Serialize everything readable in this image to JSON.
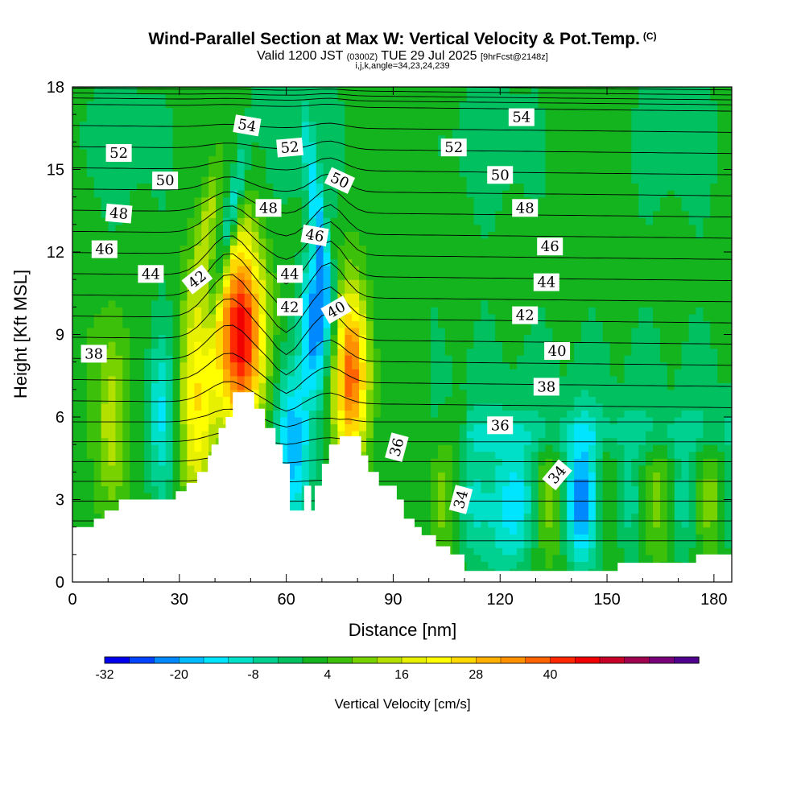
{
  "title": {
    "main": "Wind-Parallel Section at Max W: Vertical Velocity & Pot.Temp.",
    "units_tag": "(C)",
    "valid_prefix": "Valid 1200 JST",
    "valid_utc": "(0300Z)",
    "valid_date": "TUE 29 Jul 2025",
    "forecast_info": "[9hrFcst@2148z]",
    "indices": "i,j,k,angle=34,23,24,239"
  },
  "colorbar": {
    "label": "Vertical Velocity [cm/s]",
    "tick_labels": [
      "-32",
      "-20",
      "-8",
      "4",
      "16",
      "28",
      "40"
    ],
    "colors": [
      "#0000ee",
      "#0044ff",
      "#0088ff",
      "#00bbff",
      "#00e5ff",
      "#00e0c8",
      "#00d090",
      "#00c060",
      "#14b41e",
      "#3cc00a",
      "#78d200",
      "#b4e000",
      "#e6f000",
      "#ffff00",
      "#ffd800",
      "#ffb000",
      "#ff9000",
      "#ff6400",
      "#ff2800",
      "#f00000",
      "#c80028",
      "#a00050",
      "#780078",
      "#50008c"
    ]
  },
  "chart_data": {
    "type": "heatmap",
    "xlabel": "Distance [nm]",
    "ylabel": "Height [Kft MSL]",
    "xlim": [
      0,
      185
    ],
    "ylim": [
      0,
      18
    ],
    "x_ticks": [
      0,
      30,
      60,
      90,
      120,
      150,
      180
    ],
    "y_ticks": [
      0,
      3,
      6,
      9,
      12,
      15,
      18
    ],
    "field": "vertical velocity (cm/s), shaded",
    "contours": "potential temperature (C)",
    "terrain": [
      [
        0,
        2.0
      ],
      [
        6,
        2.0
      ],
      [
        6,
        2.3
      ],
      [
        9,
        2.3
      ],
      [
        9,
        2.6
      ],
      [
        13,
        2.6
      ],
      [
        13,
        3.0
      ],
      [
        29,
        3.0
      ],
      [
        29,
        3.3
      ],
      [
        32,
        3.3
      ],
      [
        32,
        3.6
      ],
      [
        35,
        3.6
      ],
      [
        35,
        4.0
      ],
      [
        38,
        4.0
      ],
      [
        38,
        4.6
      ],
      [
        39,
        4.6
      ],
      [
        39,
        5.0
      ],
      [
        41,
        5.0
      ],
      [
        41,
        5.6
      ],
      [
        43,
        5.6
      ],
      [
        43,
        6.0
      ],
      [
        45,
        6.0
      ],
      [
        45,
        6.9
      ],
      [
        51,
        6.9
      ],
      [
        51,
        6.3
      ],
      [
        54,
        6.3
      ],
      [
        54,
        5.6
      ],
      [
        57,
        5.6
      ],
      [
        57,
        5.0
      ],
      [
        59,
        5.0
      ],
      [
        59,
        4.3
      ],
      [
        61,
        4.3
      ],
      [
        61,
        2.6
      ],
      [
        65,
        2.6
      ],
      [
        65,
        3.5
      ],
      [
        67,
        3.5
      ],
      [
        67,
        2.6
      ],
      [
        68,
        2.6
      ],
      [
        68,
        3.5
      ],
      [
        70,
        3.5
      ],
      [
        70,
        4.3
      ],
      [
        72,
        4.3
      ],
      [
        72,
        5.0
      ],
      [
        75,
        5.0
      ],
      [
        75,
        5.3
      ],
      [
        81,
        5.3
      ],
      [
        81,
        4.6
      ],
      [
        83,
        4.6
      ],
      [
        83,
        4.0
      ],
      [
        86,
        4.0
      ],
      [
        86,
        3.5
      ],
      [
        91,
        3.5
      ],
      [
        91,
        3.0
      ],
      [
        93,
        3.0
      ],
      [
        93,
        2.3
      ],
      [
        96,
        2.3
      ],
      [
        96,
        2.0
      ],
      [
        98,
        2.0
      ],
      [
        98,
        1.7
      ],
      [
        102,
        1.7
      ],
      [
        102,
        1.3
      ],
      [
        106,
        1.3
      ],
      [
        106,
        1.0
      ],
      [
        110,
        1.0
      ],
      [
        110,
        0.4
      ],
      [
        153,
        0.4
      ],
      [
        153,
        0.7
      ],
      [
        175,
        0.7
      ],
      [
        175,
        1.0
      ],
      [
        185,
        1.0
      ]
    ],
    "contour_labels": [
      {
        "value": "54",
        "x": 49,
        "y": 16.6,
        "angle": 10
      },
      {
        "value": "54",
        "x": 126,
        "y": 16.9,
        "angle": 0
      },
      {
        "value": "52",
        "x": 13,
        "y": 15.6,
        "angle": 0
      },
      {
        "value": "52",
        "x": 61,
        "y": 15.8,
        "angle": -5
      },
      {
        "value": "52",
        "x": 107,
        "y": 15.8,
        "angle": 0
      },
      {
        "value": "50",
        "x": 26,
        "y": 14.6,
        "angle": 0
      },
      {
        "value": "50",
        "x": 75,
        "y": 14.6,
        "angle": 25
      },
      {
        "value": "50",
        "x": 120,
        "y": 14.8,
        "angle": 0
      },
      {
        "value": "48",
        "x": 13,
        "y": 13.4,
        "angle": 5
      },
      {
        "value": "48",
        "x": 55,
        "y": 13.6,
        "angle": 0
      },
      {
        "value": "48",
        "x": 127,
        "y": 13.6,
        "angle": 0
      },
      {
        "value": "46",
        "x": 9,
        "y": 12.1,
        "angle": 0
      },
      {
        "value": "46",
        "x": 68,
        "y": 12.6,
        "angle": 10
      },
      {
        "value": "46",
        "x": 134,
        "y": 12.2,
        "angle": 0
      },
      {
        "value": "44",
        "x": 22,
        "y": 11.2,
        "angle": 0
      },
      {
        "value": "44",
        "x": 61,
        "y": 11.2,
        "angle": 0
      },
      {
        "value": "44",
        "x": 133,
        "y": 10.9,
        "angle": 0
      },
      {
        "value": "42",
        "x": 35,
        "y": 11.0,
        "angle": -38
      },
      {
        "value": "42",
        "x": 61,
        "y": 10.0,
        "angle": 0
      },
      {
        "value": "42",
        "x": 127,
        "y": 9.7,
        "angle": 0
      },
      {
        "value": "40",
        "x": 74,
        "y": 9.9,
        "angle": -30
      },
      {
        "value": "40",
        "x": 136,
        "y": 8.4,
        "angle": 0
      },
      {
        "value": "38",
        "x": 6,
        "y": 8.3,
        "angle": 0
      },
      {
        "value": "38",
        "x": 133,
        "y": 7.1,
        "angle": 0
      },
      {
        "value": "36",
        "x": 91,
        "y": 4.9,
        "angle": -75
      },
      {
        "value": "36",
        "x": 120,
        "y": 5.7,
        "angle": 0
      },
      {
        "value": "34",
        "x": 109,
        "y": 3.0,
        "angle": -75
      },
      {
        "value": "34",
        "x": 136,
        "y": 3.9,
        "angle": -50
      }
    ],
    "features": [
      {
        "kind": "updraft",
        "x": 47,
        "y": 9.0,
        "rx": 7,
        "ry": 3.5,
        "peak": 44
      },
      {
        "kind": "updraft",
        "x": 78,
        "y": 7.5,
        "rx": 5,
        "ry": 3.0,
        "peak": 36
      },
      {
        "kind": "updraft",
        "x": 35,
        "y": 6.5,
        "rx": 5,
        "ry": 4.0,
        "peak": 20
      },
      {
        "kind": "updraft",
        "x": 11,
        "y": 6.0,
        "rx": 4,
        "ry": 3.5,
        "peak": 14
      },
      {
        "kind": "downdraft",
        "x": 62,
        "y": 5.0,
        "rx": 5,
        "ry": 3.0,
        "peak": -22
      },
      {
        "kind": "downdraft",
        "x": 68,
        "y": 9.5,
        "rx": 4,
        "ry": 2.5,
        "peak": -26
      },
      {
        "kind": "downdraft",
        "x": 25,
        "y": 6.0,
        "rx": 4,
        "ry": 3.0,
        "peak": -14
      },
      {
        "kind": "downdraft",
        "x": 120,
        "y": 2.8,
        "rx": 6,
        "ry": 2.5,
        "peak": -20
      },
      {
        "kind": "downdraft",
        "x": 144,
        "y": 3.0,
        "rx": 5,
        "ry": 2.5,
        "peak": -20
      }
    ]
  }
}
